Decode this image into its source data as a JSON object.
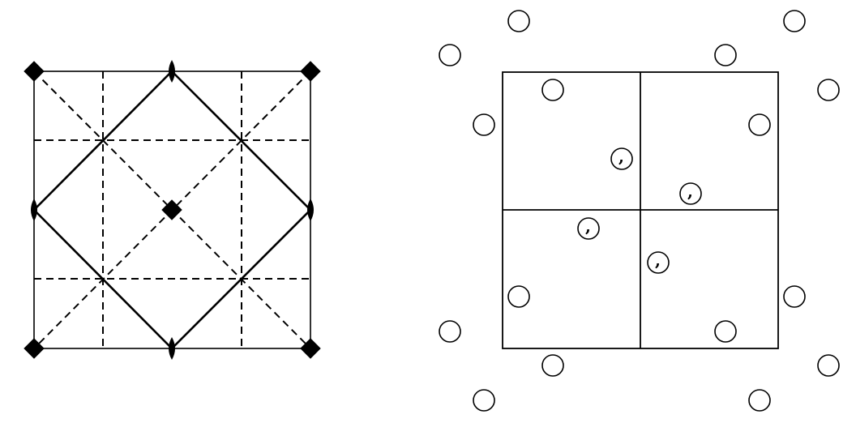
{
  "colors": {
    "background": "#ffffff",
    "ink": "#000000"
  },
  "left_panel": {
    "symbols": {
      "fourfold_axis": "diamond",
      "twofold_axis": "lens"
    }
  },
  "right_panel": {
    "inner_marker_text": ","
  }
}
